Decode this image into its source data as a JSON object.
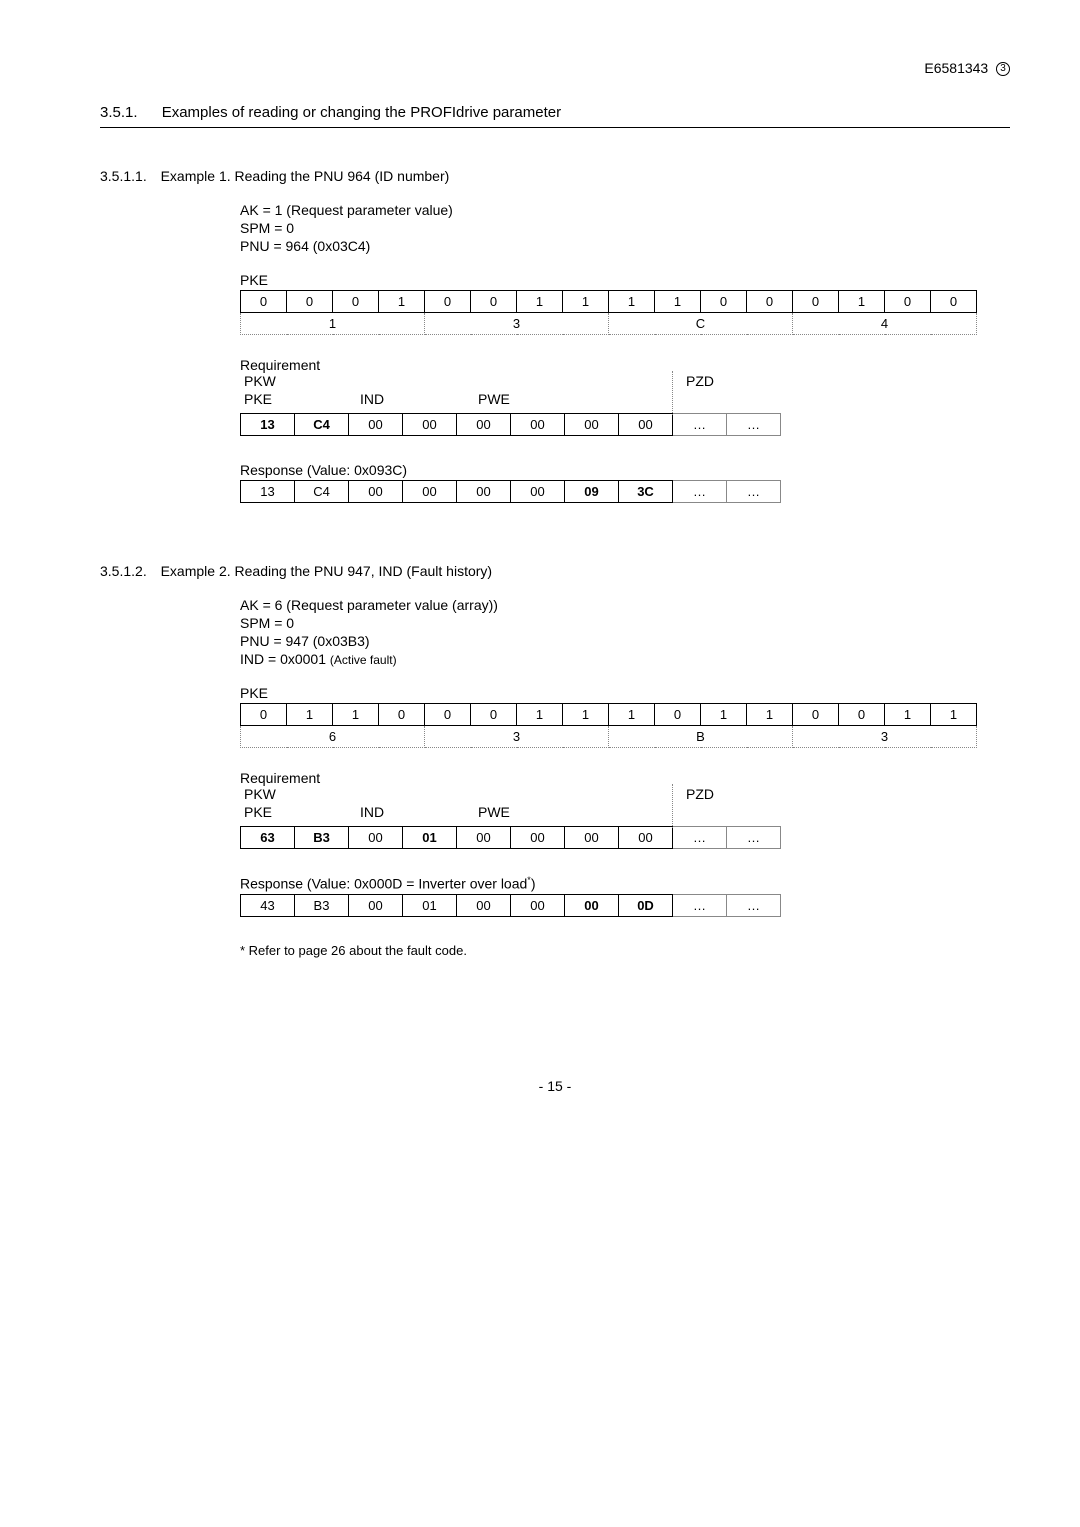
{
  "header": {
    "doc_id": "E6581343",
    "rev": "3"
  },
  "section": {
    "num": "3.5.1.",
    "title": "Examples of reading or changing the PROFIdrive parameter"
  },
  "ex1": {
    "num": "3.5.1.1.",
    "title": "Example 1. Reading the PNU 964 (ID number)",
    "params": {
      "ak": "AK = 1 (Request parameter value)",
      "spm": "SPM = 0",
      "pnu": "PNU = 964 (0x03C4)"
    },
    "pke_label": "PKE",
    "bits": [
      "0",
      "0",
      "0",
      "1",
      "0",
      "0",
      "1",
      "1",
      "1",
      "1",
      "0",
      "0",
      "0",
      "1",
      "0",
      "0"
    ],
    "nibbles": [
      "1",
      "3",
      "C",
      "4"
    ],
    "req_label": "Requirement",
    "hdr": {
      "pkw": "PKW",
      "pke": "PKE",
      "ind": "IND",
      "pwe": "PWE",
      "pzd": "PZD"
    },
    "req_bytes": [
      "13",
      "C4",
      "00",
      "00",
      "00",
      "00",
      "00",
      "00",
      "…",
      "…"
    ],
    "req_bold": [
      0,
      1
    ],
    "resp_label": "Response (Value: 0x093C)",
    "resp_bytes": [
      "13",
      "C4",
      "00",
      "00",
      "00",
      "00",
      "09",
      "3C",
      "…",
      "…"
    ],
    "resp_bold": [
      6,
      7
    ]
  },
  "ex2": {
    "num": "3.5.1.2.",
    "title": "Example 2. Reading the PNU 947, IND (Fault history)",
    "params": {
      "ak": "AK = 6 (Request parameter value (array))",
      "spm": "SPM = 0",
      "pnu": "PNU = 947 (0x03B3)",
      "ind": "IND = 0x0001 ",
      "ind_note": "(Active fault)"
    },
    "pke_label": "PKE",
    "bits": [
      "0",
      "1",
      "1",
      "0",
      "0",
      "0",
      "1",
      "1",
      "1",
      "0",
      "1",
      "1",
      "0",
      "0",
      "1",
      "1"
    ],
    "nibbles": [
      "6",
      "3",
      "B",
      "3"
    ],
    "req_label": "Requirement",
    "hdr": {
      "pkw": "PKW",
      "pke": "PKE",
      "ind": "IND",
      "pwe": "PWE",
      "pzd": "PZD"
    },
    "req_bytes": [
      "63",
      "B3",
      "00",
      "01",
      "00",
      "00",
      "00",
      "00",
      "…",
      "…"
    ],
    "req_bold": [
      0,
      1,
      3
    ],
    "resp_label_pre": "Response (Value: 0x000D = Inverter over load",
    "resp_label_post": ")",
    "resp_bytes": [
      "43",
      "B3",
      "00",
      "01",
      "00",
      "00",
      "00",
      "0D",
      "…",
      "…"
    ],
    "resp_bold": [
      6,
      7
    ],
    "footnote": "* Refer to page 26 about the fault code."
  },
  "page_num": "- 15 -",
  "dots": "…"
}
